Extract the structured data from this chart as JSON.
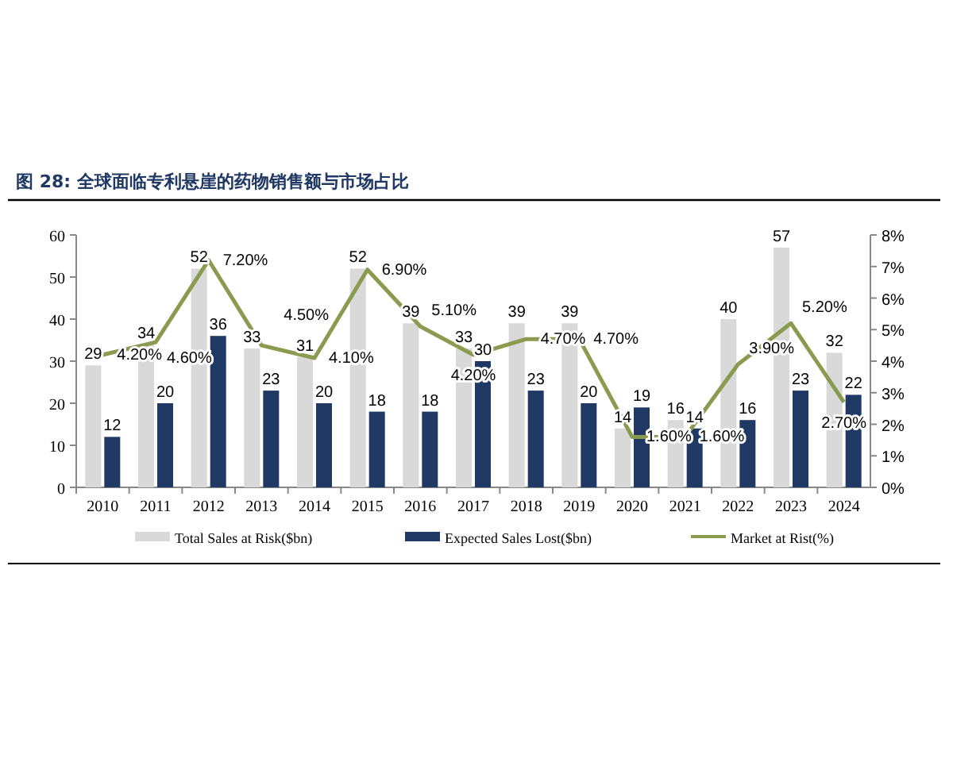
{
  "chart_data": {
    "type": "bar",
    "title": "图 28: 全球面临专利悬崖的药物销售额与市场占比",
    "categories": [
      "2010",
      "2011",
      "2012",
      "2013",
      "2014",
      "2015",
      "2016",
      "2017",
      "2018",
      "2019",
      "2020",
      "2021",
      "2022",
      "2023",
      "2024"
    ],
    "series": [
      {
        "name": "Total  Sales at Risk($bn)",
        "color": "#d9d9d9",
        "values": [
          29,
          34,
          52,
          33,
          31,
          52,
          39,
          33,
          39,
          39,
          14,
          16,
          40,
          57,
          32
        ]
      },
      {
        "name": "Expected Sales Lost($bn)",
        "color": "#1f3864",
        "values": [
          12,
          20,
          36,
          23,
          20,
          18,
          18,
          30,
          23,
          20,
          19,
          14,
          16,
          23,
          22
        ]
      },
      {
        "name": "Market at Rist(%)",
        "type": "line",
        "axis": "y2",
        "color": "#8a9a4e",
        "values": [
          4.2,
          4.6,
          7.2,
          4.5,
          4.1,
          6.9,
          5.1,
          4.2,
          4.7,
          4.7,
          1.6,
          1.6,
          3.9,
          5.2,
          2.7
        ],
        "value_labels": [
          "4.20%",
          "4.60%",
          "7.20%",
          "4.50%",
          "4.10%",
          "6.90%",
          "5.10%",
          "4.20%",
          "4.70%",
          "4.70%",
          "1.60%",
          "1.60%",
          "3.90%",
          "5.20%",
          "2.70%"
        ]
      }
    ],
    "ylim": [
      0,
      60
    ],
    "yticks": [
      0,
      10,
      20,
      30,
      40,
      50,
      60
    ],
    "y2lim": [
      0,
      8
    ],
    "y2ticks": [
      {
        "value": 0,
        "label": "0%"
      },
      {
        "value": 1,
        "label": "1%"
      },
      {
        "value": 2,
        "label": "2%"
      },
      {
        "value": 3,
        "label": "3%"
      },
      {
        "value": 4,
        "label": "4%"
      },
      {
        "value": 5,
        "label": "5%"
      },
      {
        "value": 6,
        "label": "6%"
      },
      {
        "value": 7,
        "label": "7%"
      },
      {
        "value": 8,
        "label": "8%"
      }
    ],
    "data_labels": true,
    "legend": "bottom"
  }
}
